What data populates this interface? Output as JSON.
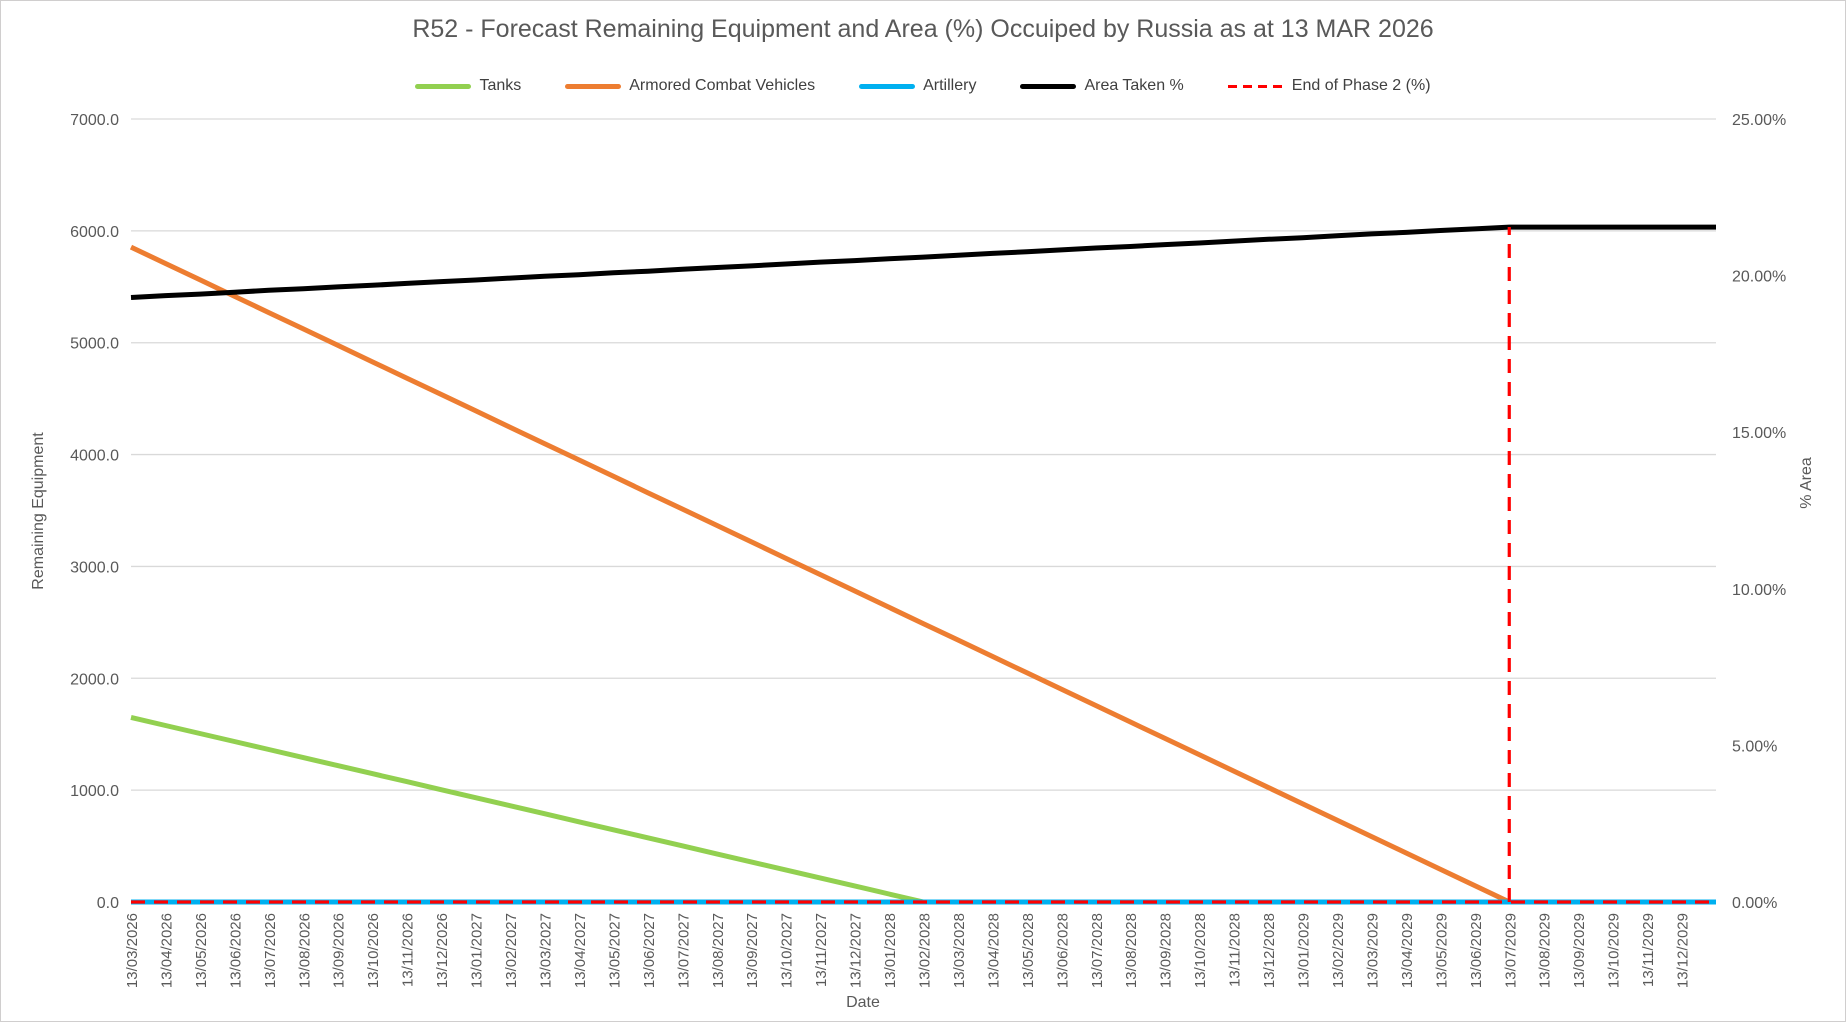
{
  "chart_data": {
    "type": "line",
    "title": "R52 - Forecast Remaining Equipment and Area (%) Occuiped by Russia as at 13 MAR 2026",
    "legend_position": "top",
    "grid": "horizontal",
    "colors": {
      "gridline": "#d9d9d9",
      "axis_text": "#595959",
      "legend_text": "#404040"
    },
    "x_axis": {
      "label": "Date",
      "categories": [
        "13/03/2026",
        "13/04/2026",
        "13/05/2026",
        "13/06/2026",
        "13/07/2026",
        "13/08/2026",
        "13/09/2026",
        "13/10/2026",
        "13/11/2026",
        "13/12/2026",
        "13/01/2027",
        "13/02/2027",
        "13/03/2027",
        "13/04/2027",
        "13/05/2027",
        "13/06/2027",
        "13/07/2027",
        "13/08/2027",
        "13/09/2027",
        "13/10/2027",
        "13/11/2027",
        "13/12/2027",
        "13/01/2028",
        "13/02/2028",
        "13/03/2028",
        "13/04/2028",
        "13/05/2028",
        "13/06/2028",
        "13/07/2028",
        "13/08/2028",
        "13/09/2028",
        "13/10/2028",
        "13/11/2028",
        "13/12/2028",
        "13/01/2029",
        "13/02/2029",
        "13/03/2029",
        "13/04/2029",
        "13/05/2029",
        "13/06/2029",
        "13/07/2029",
        "13/08/2029",
        "13/09/2029",
        "13/10/2029",
        "13/11/2029",
        "13/12/2029"
      ]
    },
    "y_axis_left": {
      "label": "Remaining Equipment",
      "min": 0,
      "max": 7000,
      "tick_step": 1000,
      "tick_labels": [
        "7000.0",
        "6000.0",
        "5000.0",
        "4000.0",
        "3000.0",
        "2000.0",
        "1000.0",
        "0.0"
      ]
    },
    "y_axis_right": {
      "label": "% Area",
      "min": 0,
      "max": 25,
      "tick_step": 5,
      "tick_labels": [
        "25.00%",
        "20.00%",
        "15.00%",
        "10.00%",
        "5.00%",
        "0.00%"
      ]
    },
    "series": [
      {
        "name": "Tanks",
        "color": "#92d050",
        "style": "solid",
        "axis": "left",
        "values": [
          1650,
          1578.3,
          1506.5,
          1434.8,
          1363.0,
          1291.3,
          1219.6,
          1147.8,
          1076.1,
          1004.3,
          932.6,
          860.9,
          789.1,
          717.4,
          645.7,
          573.9,
          502.2,
          430.4,
          358.7,
          287.0,
          215.2,
          143.5,
          71.7,
          0,
          0,
          0,
          0,
          0,
          0,
          0,
          0,
          0,
          0,
          0,
          0,
          0,
          0,
          0,
          0,
          0,
          0,
          0,
          0,
          0,
          0,
          0
        ]
      },
      {
        "name": "Armored Combat Vehicles",
        "color": "#ed7d31",
        "style": "solid",
        "axis": "left",
        "values": [
          5855,
          5708.6,
          5562.3,
          5415.9,
          5269.5,
          5123.1,
          4976.8,
          4830.4,
          4684.0,
          4537.6,
          4391.3,
          4244.9,
          4098.5,
          3952.1,
          3805.8,
          3659.4,
          3513.0,
          3366.6,
          3220.3,
          3073.9,
          2927.5,
          2781.1,
          2634.8,
          2488.4,
          2342.0,
          2195.6,
          2049.3,
          1902.9,
          1756.5,
          1610.1,
          1463.8,
          1317.4,
          1171.0,
          1024.6,
          878.3,
          731.9,
          585.5,
          439.1,
          292.8,
          146.4,
          0,
          0,
          0,
          0,
          0,
          0
        ]
      },
      {
        "name": "Artillery",
        "color": "#00b0f0",
        "style": "solid",
        "axis": "left",
        "values": [
          0,
          0,
          0,
          0,
          0,
          0,
          0,
          0,
          0,
          0,
          0,
          0,
          0,
          0,
          0,
          0,
          0,
          0,
          0,
          0,
          0,
          0,
          0,
          0,
          0,
          0,
          0,
          0,
          0,
          0,
          0,
          0,
          0,
          0,
          0,
          0,
          0,
          0,
          0,
          0,
          0,
          0,
          0,
          0,
          0,
          0
        ]
      },
      {
        "name": "Area Taken %",
        "color": "#000000",
        "style": "solid",
        "axis": "right",
        "values": [
          19.3,
          19.36,
          19.41,
          19.47,
          19.53,
          19.58,
          19.64,
          19.69,
          19.75,
          19.81,
          19.86,
          19.92,
          19.98,
          20.03,
          20.09,
          20.14,
          20.2,
          20.26,
          20.31,
          20.37,
          20.43,
          20.48,
          20.54,
          20.59,
          20.65,
          20.71,
          20.76,
          20.82,
          20.88,
          20.93,
          20.99,
          21.04,
          21.1,
          21.16,
          21.21,
          21.27,
          21.33,
          21.38,
          21.44,
          21.49,
          21.55,
          21.55,
          21.55,
          21.55,
          21.55,
          21.55
        ]
      },
      {
        "name": "End of Phase 2 (%)",
        "color": "#ff0000",
        "style": "dashed",
        "axis": "right",
        "values": [
          0,
          0,
          0,
          0,
          0,
          0,
          0,
          0,
          0,
          0,
          0,
          0,
          0,
          0,
          0,
          0,
          0,
          0,
          0,
          0,
          0,
          0,
          0,
          0,
          0,
          0,
          0,
          0,
          0,
          0,
          0,
          0,
          0,
          0,
          0,
          0,
          0,
          0,
          0,
          0,
          0,
          0,
          0,
          0,
          0,
          0
        ],
        "spike": {
          "category": "13/07/2029",
          "value_pct": 21.55
        }
      }
    ]
  }
}
